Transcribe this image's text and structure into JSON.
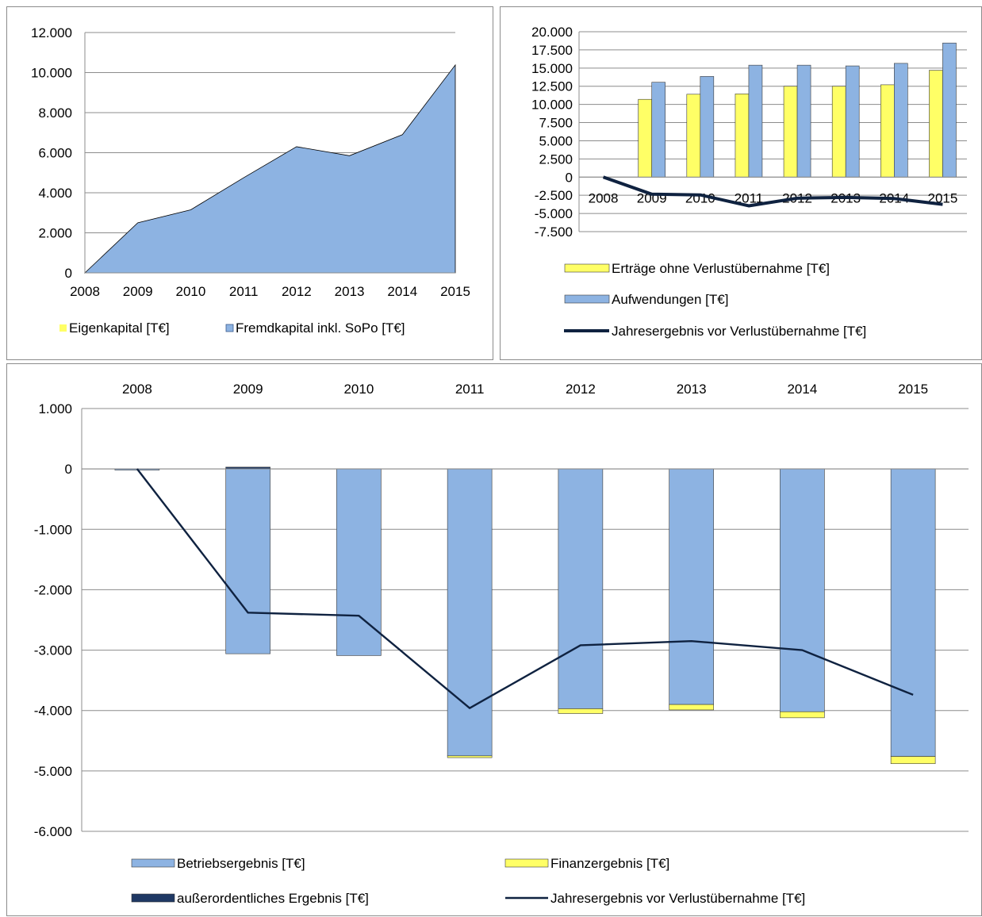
{
  "chart_data": [
    {
      "type": "area",
      "categories": [
        "2008",
        "2009",
        "2010",
        "2011",
        "2012",
        "2013",
        "2014",
        "2015"
      ],
      "ylim": [
        0,
        12000
      ],
      "yticks": [
        "0",
        "2.000",
        "4.000",
        "6.000",
        "8.000",
        "10.000",
        "12.000"
      ],
      "grid": true,
      "legend_position": "bottom",
      "series": [
        {
          "name": "Eigenkapital [T€]",
          "color": "#ffff66",
          "values": [
            0,
            0,
            0,
            0,
            0,
            0,
            0,
            0
          ]
        },
        {
          "name": "Fremdkapital inkl. SoPo [T€]",
          "color": "#8db3e2",
          "values": [
            0,
            2500,
            3150,
            4750,
            6300,
            5850,
            6900,
            10380
          ]
        }
      ]
    },
    {
      "type": "bar",
      "categories": [
        "2008",
        "2009",
        "2010",
        "2011",
        "2012",
        "2013",
        "2014",
        "2015"
      ],
      "ylim": [
        -7500,
        20000
      ],
      "yticks": [
        "-7.500",
        "-5.000",
        "-2.500",
        "0",
        "2.500",
        "5.000",
        "7.500",
        "10.000",
        "12.500",
        "15.000",
        "17.500",
        "20.000"
      ],
      "grid": true,
      "legend_position": "bottom",
      "series": [
        {
          "name": "Erträge ohne Verlustübernahme [T€]",
          "color": "#ffff66",
          "kind": "bar",
          "values": [
            0,
            10700,
            11400,
            11450,
            12500,
            12500,
            12700,
            14700
          ]
        },
        {
          "name": "Aufwendungen [T€]",
          "color": "#8db3e2",
          "kind": "bar",
          "values": [
            0,
            13050,
            13850,
            15400,
            15400,
            15300,
            15650,
            18450
          ]
        },
        {
          "name": "Jahresergebnis vor Verlustübernahme [T€]",
          "color": "#0f2240",
          "kind": "line",
          "values": [
            0,
            -2350,
            -2450,
            -3950,
            -2900,
            -2800,
            -2950,
            -3750
          ]
        }
      ]
    },
    {
      "type": "bar",
      "stacked": true,
      "categories": [
        "2008",
        "2009",
        "2010",
        "2011",
        "2012",
        "2013",
        "2014",
        "2015"
      ],
      "ylim": [
        -6000,
        1000
      ],
      "yticks": [
        "-6.000",
        "-5.000",
        "-4.000",
        "-3.000",
        "-2.000",
        "-1.000",
        "0",
        "1.000"
      ],
      "grid": true,
      "legend_position": "bottom",
      "series": [
        {
          "name": "Betriebsergebnis [T€]",
          "color": "#8db3e2",
          "kind": "bar",
          "values": [
            -10,
            -3060,
            -3090,
            -4750,
            -3970,
            -3900,
            -4020,
            -4760
          ]
        },
        {
          "name": "Finanzergebnis [T€]",
          "color": "#ffff66",
          "kind": "bar",
          "values": [
            0,
            0,
            0,
            -30,
            -80,
            -90,
            -100,
            -120
          ]
        },
        {
          "name": "außerordentliches Ergebnis [T€]",
          "color": "#1f3864",
          "kind": "bar",
          "values": [
            0,
            30,
            0,
            0,
            0,
            0,
            0,
            0
          ]
        },
        {
          "name": "Jahresergebnis vor Verlustübernahme [T€]",
          "color": "#0f2240",
          "kind": "line",
          "values": [
            0,
            -2380,
            -2430,
            -3960,
            -2920,
            -2850,
            -3000,
            -3740
          ]
        }
      ]
    }
  ]
}
